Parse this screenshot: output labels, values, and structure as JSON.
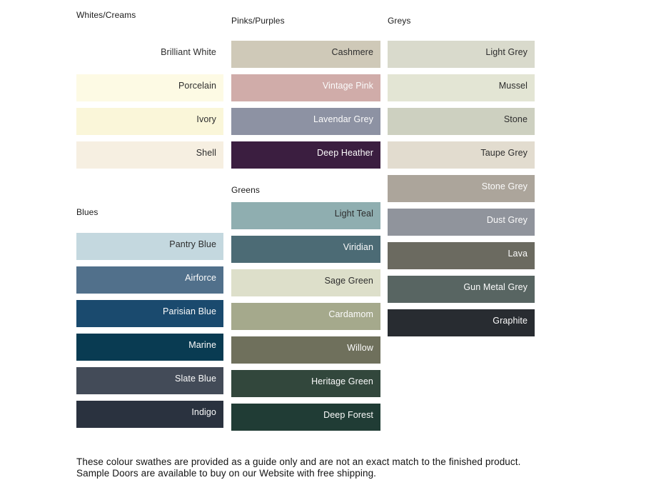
{
  "page": {
    "background": "#ffffff",
    "text_dark": "#2d2d2d",
    "text_light": "#fbfbfb"
  },
  "columns": [
    {
      "sections": [
        {
          "title": "Whites/Creams",
          "swatches": [
            {
              "name": "Brilliant White",
              "color": "#FFFFFF",
              "tone": "dark"
            },
            {
              "name": "Porcelain",
              "color": "#FDFAE4",
              "tone": "dark"
            },
            {
              "name": "Ivory",
              "color": "#FAF6D9",
              "tone": "dark"
            },
            {
              "name": "Shell",
              "color": "#F6EFE1",
              "tone": "dark"
            }
          ]
        },
        {
          "title": "Blues",
          "swatches": [
            {
              "name": "Pantry Blue",
              "color": "#C4D8DF",
              "tone": "dark"
            },
            {
              "name": "Airforce",
              "color": "#51708B",
              "tone": "light"
            },
            {
              "name": "Parisian Blue",
              "color": "#1A4A6E",
              "tone": "light"
            },
            {
              "name": "Marine",
              "color": "#093B52",
              "tone": "light"
            },
            {
              "name": "Slate Blue",
              "color": "#434B58",
              "tone": "light"
            },
            {
              "name": "Indigo",
              "color": "#2A323F",
              "tone": "light"
            }
          ]
        }
      ]
    },
    {
      "sections": [
        {
          "title": "Pinks/Purples",
          "swatches": [
            {
              "name": "Cashmere",
              "color": "#CFC9B8",
              "tone": "dark"
            },
            {
              "name": "Vintage Pink",
              "color": "#D0ACA9",
              "tone": "light"
            },
            {
              "name": "Lavendar Grey",
              "color": "#8D92A3",
              "tone": "light"
            },
            {
              "name": "Deep Heather",
              "color": "#3B1E40",
              "tone": "light"
            }
          ]
        },
        {
          "title": "Greens",
          "swatches": [
            {
              "name": "Light Teal",
              "color": "#8FAEB0",
              "tone": "dark"
            },
            {
              "name": "Viridian",
              "color": "#4C6B75",
              "tone": "light"
            },
            {
              "name": "Sage Green",
              "color": "#DDDFCA",
              "tone": "dark"
            },
            {
              "name": "Cardamom",
              "color": "#A5A98C",
              "tone": "light"
            },
            {
              "name": "Willow",
              "color": "#6F705C",
              "tone": "light"
            },
            {
              "name": "Heritage Green",
              "color": "#32473C",
              "tone": "light"
            },
            {
              "name": "Deep Forest",
              "color": "#203C35",
              "tone": "light"
            }
          ]
        }
      ]
    },
    {
      "sections": [
        {
          "title": "Greys",
          "swatches": [
            {
              "name": "Light Grey",
              "color": "#D9DACC",
              "tone": "dark"
            },
            {
              "name": "Mussel",
              "color": "#E3E5D4",
              "tone": "dark"
            },
            {
              "name": "Stone",
              "color": "#CDD0C0",
              "tone": "dark"
            },
            {
              "name": "Taupe Grey",
              "color": "#E2DCCF",
              "tone": "dark"
            },
            {
              "name": "Stone Grey",
              "color": "#ACA59B",
              "tone": "light"
            },
            {
              "name": "Dust Grey",
              "color": "#90949C",
              "tone": "light"
            },
            {
              "name": "Lava",
              "color": "#6B6A60",
              "tone": "light"
            },
            {
              "name": "Gun Metal Grey",
              "color": "#586562",
              "tone": "light"
            },
            {
              "name": "Graphite",
              "color": "#282C31",
              "tone": "light"
            }
          ]
        }
      ]
    }
  ],
  "footer": {
    "text": "These colour swathes are provided as a guide only and are not an exact match to the finished product.  Sample Doors are available to buy on our Website with free shipping."
  }
}
